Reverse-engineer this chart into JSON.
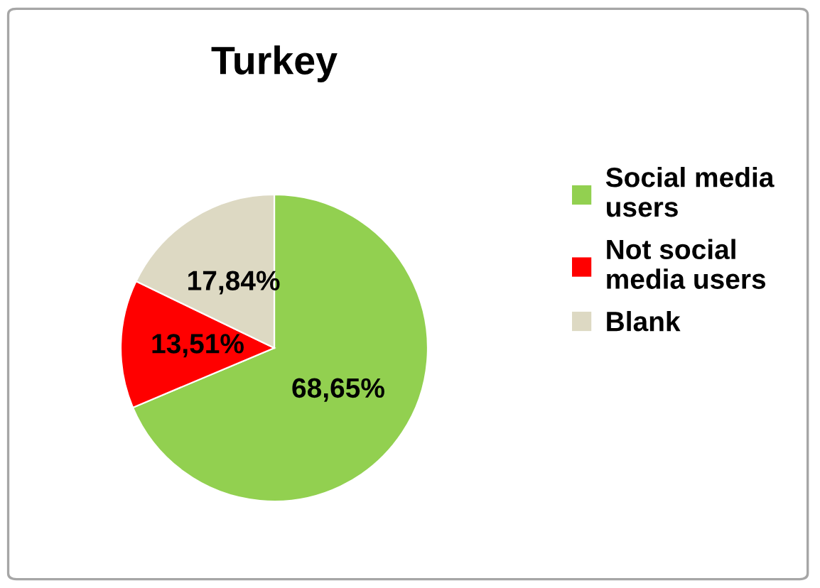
{
  "chart_data": {
    "type": "pie",
    "title": "Turkey",
    "categories": [
      "Social media\nusers",
      "Not social\nmedia users",
      "Blank"
    ],
    "values": [
      68.65,
      13.51,
      17.84
    ],
    "value_labels": [
      "68,65%",
      "13,51%",
      "17,84%"
    ],
    "colors": [
      "#92d050",
      "#ff0000",
      "#ddd9c3"
    ],
    "legend": "right"
  }
}
